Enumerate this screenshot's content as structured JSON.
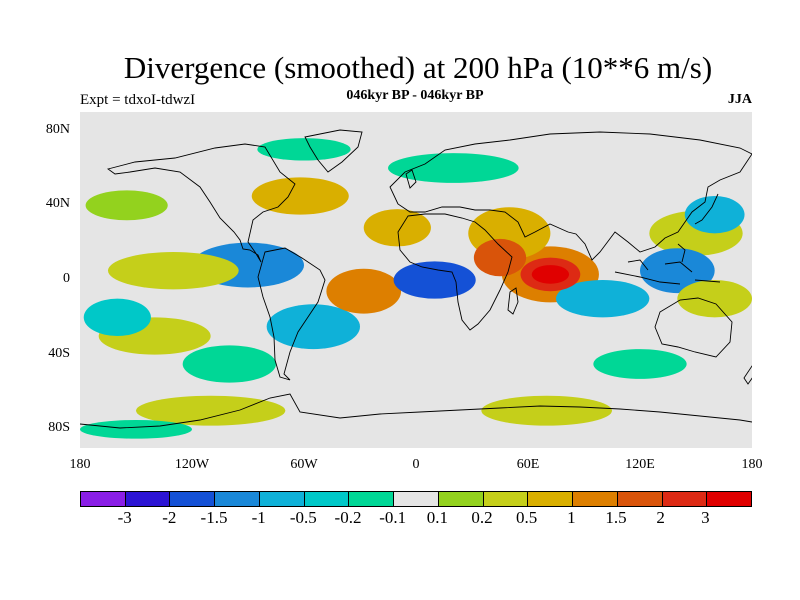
{
  "title": "Divergence (smoothed) at 200 hPa (10**6 m/s)",
  "experiment": "Expt = tdxoI-tdwzI",
  "period": "046kyr BP - 046kyr BP",
  "season": "JJA",
  "map": {
    "projection": "cylindrical equidistant",
    "lon_range": [
      -180,
      180
    ],
    "lat_range": [
      -90,
      90
    ],
    "background_color": "#e5e5e5",
    "coastline_color": "#000000",
    "lat_labels": [
      "80N",
      "40N",
      "0",
      "40S",
      "80S"
    ],
    "lat_values": [
      80,
      40,
      0,
      -40,
      -80
    ],
    "lon_labels": [
      "180",
      "120W",
      "60W",
      "0",
      "60E",
      "120E",
      "180"
    ],
    "lon_values": [
      -180,
      -120,
      -60,
      0,
      60,
      120,
      180
    ]
  },
  "colorbar": {
    "colors": [
      "#8a1ee6",
      "#2c14d4",
      "#1451d6",
      "#1a88d8",
      "#0fb1d8",
      "#00c8c8",
      "#00d796",
      "#e5e5e5",
      "#93d21e",
      "#c5cf1a",
      "#d9af00",
      "#dd7f00",
      "#d9540a",
      "#dd2a14",
      "#e00000"
    ],
    "labels": [
      "-3",
      "-2",
      "-1.5",
      "-1",
      "-0.5",
      "-0.2",
      "-0.1",
      "0.1",
      "0.2",
      "0.5",
      "1",
      "1.5",
      "2",
      "3"
    ]
  },
  "field_blobs": [
    {
      "lon": 72,
      "lat": 3,
      "rx": 10,
      "ry": 5,
      "color": "#e00000"
    },
    {
      "lon": 72,
      "lat": 3,
      "rx": 16,
      "ry": 9,
      "color": "#dd2a14"
    },
    {
      "lon": 72,
      "lat": 3,
      "rx": 26,
      "ry": 15,
      "color": "#dd7f00"
    },
    {
      "lon": 45,
      "lat": 12,
      "rx": 14,
      "ry": 10,
      "color": "#d9540a"
    },
    {
      "lon": 50,
      "lat": 25,
      "rx": 22,
      "ry": 14,
      "color": "#d9af00"
    },
    {
      "lon": -28,
      "lat": -6,
      "rx": 20,
      "ry": 12,
      "color": "#dd7f00"
    },
    {
      "lon": -10,
      "lat": 28,
      "rx": 18,
      "ry": 10,
      "color": "#d9af00"
    },
    {
      "lon": -62,
      "lat": 45,
      "rx": 26,
      "ry": 10,
      "color": "#d9af00"
    },
    {
      "lon": -130,
      "lat": 5,
      "rx": 35,
      "ry": 10,
      "color": "#c5cf1a"
    },
    {
      "lon": -140,
      "lat": -30,
      "rx": 30,
      "ry": 10,
      "color": "#c5cf1a"
    },
    {
      "lon": 150,
      "lat": 25,
      "rx": 25,
      "ry": 12,
      "color": "#c5cf1a"
    },
    {
      "lon": 160,
      "lat": -10,
      "rx": 20,
      "ry": 10,
      "color": "#c5cf1a"
    },
    {
      "lon": -110,
      "lat": -70,
      "rx": 40,
      "ry": 8,
      "color": "#c5cf1a"
    },
    {
      "lon": 70,
      "lat": -70,
      "rx": 35,
      "ry": 8,
      "color": "#c5cf1a"
    },
    {
      "lon": -155,
      "lat": 40,
      "rx": 22,
      "ry": 8,
      "color": "#93d21e"
    },
    {
      "lon": -90,
      "lat": 8,
      "rx": 30,
      "ry": 12,
      "color": "#1a88d8"
    },
    {
      "lon": 10,
      "lat": 0,
      "rx": 22,
      "ry": 10,
      "color": "#1451d6"
    },
    {
      "lon": 100,
      "lat": -10,
      "rx": 25,
      "ry": 10,
      "color": "#0fb1d8"
    },
    {
      "lon": 140,
      "lat": 5,
      "rx": 20,
      "ry": 12,
      "color": "#1a88d8"
    },
    {
      "lon": 160,
      "lat": 35,
      "rx": 16,
      "ry": 10,
      "color": "#0fb1d8"
    },
    {
      "lon": -55,
      "lat": -25,
      "rx": 25,
      "ry": 12,
      "color": "#0fb1d8"
    },
    {
      "lon": -160,
      "lat": -20,
      "rx": 18,
      "ry": 10,
      "color": "#00c8c8"
    },
    {
      "lon": -100,
      "lat": -45,
      "rx": 25,
      "ry": 10,
      "color": "#00d796"
    },
    {
      "lon": 20,
      "lat": 60,
      "rx": 35,
      "ry": 8,
      "color": "#00d796"
    },
    {
      "lon": -60,
      "lat": 70,
      "rx": 25,
      "ry": 6,
      "color": "#00d796"
    },
    {
      "lon": 120,
      "lat": -45,
      "rx": 25,
      "ry": 8,
      "color": "#00d796"
    },
    {
      "lon": -150,
      "lat": -80,
      "rx": 30,
      "ry": 5,
      "color": "#00d796"
    }
  ]
}
